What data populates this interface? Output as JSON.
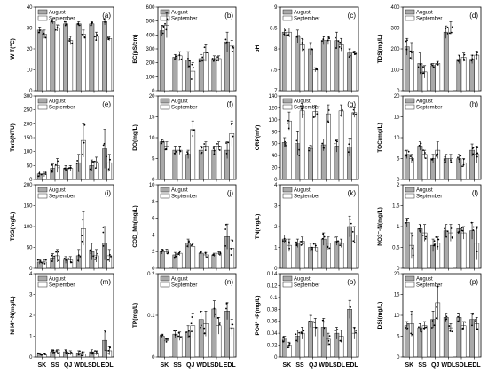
{
  "chart_data": {
    "type": "bar",
    "categories": [
      "SK",
      "SS",
      "QJ",
      "WDL",
      "SDL",
      "EDL"
    ],
    "legend": [
      "August",
      "September"
    ],
    "colors": {
      "August": "#a9a9a9",
      "September": "#ffffff"
    },
    "panels": [
      {
        "label": "(a)",
        "ylabel": "W T(℃)",
        "ylim": [
          0,
          40
        ],
        "yticks": [
          0,
          10,
          20,
          30,
          40
        ],
        "august": [
          29,
          33,
          32,
          32,
          32,
          33
        ],
        "september": [
          27,
          30,
          24,
          27,
          26,
          25
        ],
        "aug_err": [
          1.5,
          1,
          1,
          1,
          1,
          1.5
        ],
        "sep_err": [
          2,
          1.5,
          2,
          2,
          2,
          1
        ]
      },
      {
        "label": "(b)",
        "ylabel": "EC(μS/cm)",
        "ylim": [
          0,
          600
        ],
        "yticks": [
          0,
          100,
          200,
          300,
          400,
          500,
          600
        ],
        "august": [
          430,
          240,
          220,
          230,
          230,
          350
        ],
        "september": [
          470,
          250,
          140,
          270,
          230,
          320
        ],
        "aug_err": [
          40,
          20,
          60,
          30,
          20,
          70
        ],
        "sep_err": [
          90,
          30,
          60,
          60,
          20,
          40
        ]
      },
      {
        "label": "(c)",
        "ylabel": "pH",
        "ylim": [
          7.0,
          9.0
        ],
        "yticks": [
          7.0,
          7.5,
          8.0,
          8.5,
          9.0
        ],
        "august": [
          8.4,
          8.3,
          8.0,
          8.2,
          8.2,
          7.9
        ],
        "september": [
          8.4,
          8.1,
          7.5,
          8.2,
          8.1,
          7.9
        ],
        "aug_err": [
          0.1,
          0.15,
          0.15,
          0.1,
          0.2,
          0.1
        ],
        "sep_err": [
          0.1,
          0.15,
          0.05,
          0.1,
          0.15,
          0.05
        ]
      },
      {
        "label": "(d)",
        "ylabel": "TDS(mg/L)",
        "ylim": [
          0,
          400
        ],
        "yticks": [
          0,
          100,
          200,
          300,
          400
        ],
        "august": [
          210,
          130,
          120,
          280,
          150,
          150
        ],
        "september": [
          190,
          90,
          130,
          300,
          160,
          170
        ],
        "aug_err": [
          40,
          50,
          10,
          30,
          20,
          20
        ],
        "sep_err": [
          40,
          30,
          10,
          30,
          20,
          20
        ]
      },
      {
        "label": "(e)",
        "ylabel": "Turb(NTU)",
        "ylim": [
          0,
          300
        ],
        "yticks": [
          0,
          50,
          100,
          150,
          200,
          250,
          300
        ],
        "august": [
          20,
          40,
          40,
          60,
          50,
          110
        ],
        "september": [
          20,
          50,
          40,
          140,
          60,
          60
        ],
        "aug_err": [
          10,
          15,
          10,
          30,
          20,
          70
        ],
        "sep_err": [
          10,
          25,
          10,
          60,
          20,
          30
        ]
      },
      {
        "label": "(f)",
        "ylabel": "DO(mg/L)",
        "ylim": [
          0,
          20
        ],
        "yticks": [
          0,
          5,
          10,
          15,
          20
        ],
        "august": [
          9,
          7,
          6,
          7,
          7,
          7
        ],
        "september": [
          8,
          7,
          12,
          8,
          8,
          11
        ],
        "aug_err": [
          0.5,
          1,
          1,
          1,
          1,
          2
        ],
        "sep_err": [
          1,
          1,
          2,
          1,
          1,
          3
        ]
      },
      {
        "label": "(g)",
        "ylabel": "ORP(mV)",
        "ylim": [
          0,
          140
        ],
        "yticks": [
          0,
          20,
          40,
          60,
          80,
          100,
          120,
          140
        ],
        "august": [
          62,
          60,
          52,
          58,
          56,
          54
        ],
        "september": [
          98,
          115,
          114,
          110,
          115,
          112
        ],
        "aug_err": [
          8,
          20,
          5,
          10,
          10,
          15
        ],
        "sep_err": [
          15,
          12,
          10,
          15,
          10,
          8
        ]
      },
      {
        "label": "(h)",
        "ylabel": "TOC(mg/L)",
        "ylim": [
          0,
          20
        ],
        "yticks": [
          0,
          5,
          10,
          15,
          20
        ],
        "august": [
          6,
          8,
          5,
          5,
          5,
          7
        ],
        "september": [
          5,
          6,
          7,
          5,
          4,
          6
        ],
        "aug_err": [
          1,
          1,
          1,
          1,
          1,
          1.5
        ],
        "sep_err": [
          1,
          1,
          2,
          1,
          1,
          2
        ]
      },
      {
        "label": "(i)",
        "ylabel": "TSS(mg/L)",
        "ylim": [
          0,
          200
        ],
        "yticks": [
          0,
          50,
          100,
          150,
          200
        ],
        "august": [
          15,
          25,
          20,
          30,
          40,
          60
        ],
        "september": [
          15,
          30,
          20,
          95,
          30,
          30
        ],
        "aug_err": [
          5,
          10,
          8,
          15,
          20,
          40
        ],
        "sep_err": [
          5,
          15,
          8,
          40,
          15,
          15
        ]
      },
      {
        "label": "(j)",
        "ylabel": "COD_Mn(mg/L)",
        "ylim": [
          0,
          10
        ],
        "yticks": [
          0,
          2,
          4,
          6,
          8,
          10
        ],
        "august": [
          2,
          1.6,
          3,
          1.8,
          1.6,
          3.8
        ],
        "september": [
          2,
          1.8,
          2.6,
          1.6,
          1.8,
          2.4
        ],
        "aug_err": [
          0.3,
          0.3,
          0.5,
          0.3,
          0.2,
          1.5
        ],
        "sep_err": [
          0.3,
          0.3,
          0.4,
          0.3,
          0.2,
          1
        ]
      },
      {
        "label": "(k)",
        "ylabel": "TN(mg/L)",
        "ylim": [
          0,
          4
        ],
        "yticks": [
          0,
          1,
          2,
          3,
          4
        ],
        "august": [
          1.4,
          1.2,
          1.0,
          1.4,
          1.3,
          2.0
        ],
        "september": [
          1.1,
          1.3,
          1.0,
          1.2,
          1.2,
          1.6
        ],
        "aug_err": [
          0.2,
          0.2,
          0.2,
          0.3,
          0.2,
          0.5
        ],
        "sep_err": [
          0.3,
          0.2,
          0.2,
          0.3,
          0.2,
          0.4
        ]
      },
      {
        "label": "(l)",
        "ylabel": "NO3⁻-N(mg/L)",
        "ylim": [
          0,
          2.0
        ],
        "yticks": [
          0.0,
          0.5,
          1.0,
          1.5,
          2.0
        ],
        "august": [
          1.1,
          0.95,
          0.55,
          0.9,
          0.95,
          0.9
        ],
        "september": [
          0.55,
          0.85,
          0.6,
          0.85,
          0.85,
          0.6
        ],
        "aug_err": [
          0.1,
          0.1,
          0.15,
          0.15,
          0.1,
          0.2
        ],
        "sep_err": [
          0.3,
          0.2,
          0.15,
          0.2,
          0.15,
          0.4
        ]
      },
      {
        "label": "(m)",
        "ylabel": "NH4⁺-N(mg/L)",
        "ylim": [
          0,
          4
        ],
        "yticks": [
          0,
          1,
          2,
          3,
          4
        ],
        "august": [
          0.15,
          0.25,
          0.25,
          0.2,
          0.25,
          0.8
        ],
        "september": [
          0.15,
          0.25,
          0.2,
          0.15,
          0.2,
          0.3
        ],
        "aug_err": [
          0.05,
          0.1,
          0.1,
          0.1,
          0.1,
          0.5
        ],
        "sep_err": [
          0.05,
          0.1,
          0.1,
          0.1,
          0.1,
          0.2
        ]
      },
      {
        "label": "(n)",
        "ylabel": "TP(mg/L)",
        "ylim": [
          0,
          0.2
        ],
        "yticks": [
          0.0,
          0.1,
          0.2
        ],
        "august": [
          0.05,
          0.055,
          0.06,
          0.09,
          0.115,
          0.11
        ],
        "september": [
          0.04,
          0.05,
          0.075,
          0.08,
          0.075,
          0.07
        ],
        "aug_err": [
          0.005,
          0.01,
          0.015,
          0.02,
          0.02,
          0.02
        ],
        "sep_err": [
          0.005,
          0.01,
          0.03,
          0.03,
          0.02,
          0.02
        ]
      },
      {
        "label": "(o)",
        "ylabel": "PO4³⁻-P(mg/L)",
        "ylim": [
          0,
          0.14
        ],
        "yticks": [
          0.0,
          0.02,
          0.04,
          0.06,
          0.08,
          0.1,
          0.12,
          0.14
        ],
        "august": [
          0.03,
          0.035,
          0.06,
          0.05,
          0.04,
          0.08
        ],
        "september": [
          0.02,
          0.04,
          0.05,
          0.03,
          0.035,
          0.04
        ],
        "aug_err": [
          0.005,
          0.01,
          0.01,
          0.015,
          0.01,
          0.015
        ],
        "sep_err": [
          0.005,
          0.01,
          0.015,
          0.01,
          0.01,
          0.01
        ]
      },
      {
        "label": "(p)",
        "ylabel": "DSi(mg/L)",
        "ylim": [
          0,
          20
        ],
        "yticks": [
          0,
          5,
          10,
          15,
          20
        ],
        "august": [
          7.5,
          7,
          9,
          9.5,
          9.5,
          9
        ],
        "september": [
          8,
          7.5,
          13,
          7,
          7.5,
          8
        ],
        "aug_err": [
          1,
          1,
          2,
          1,
          1,
          1.5
        ],
        "sep_err": [
          3,
          1,
          4,
          1,
          1,
          1.5
        ]
      }
    ]
  }
}
